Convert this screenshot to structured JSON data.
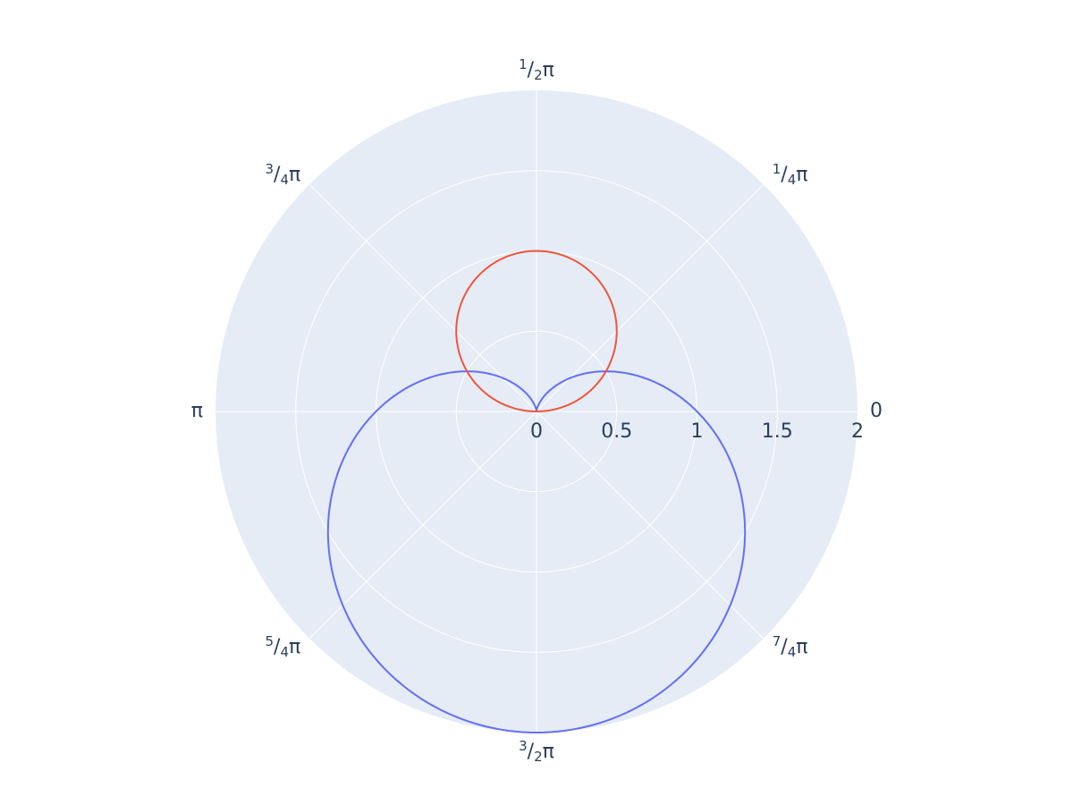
{
  "chart_data": {
    "type": "polar-line",
    "title": "",
    "background_color": "#e5ecf6",
    "grid_color": "#ffffff",
    "radial_axis": {
      "range": [
        0,
        2
      ],
      "tick_values": [
        0,
        0.5,
        1,
        1.5,
        2
      ],
      "tick_labels": [
        "0",
        "0.5",
        "1",
        "1.5",
        "2"
      ]
    },
    "angular_axis": {
      "unit": "radians",
      "direction": "counterclockwise",
      "rotation_degrees": 0,
      "ticks": [
        {
          "angle_degrees": 0,
          "num": "",
          "den": "",
          "symbol": "0"
        },
        {
          "angle_degrees": 45,
          "num": "1",
          "den": "4",
          "symbol": "π"
        },
        {
          "angle_degrees": 90,
          "num": "1",
          "den": "2",
          "symbol": "π"
        },
        {
          "angle_degrees": 135,
          "num": "3",
          "den": "4",
          "symbol": "π"
        },
        {
          "angle_degrees": 180,
          "num": "",
          "den": "",
          "symbol": "π"
        },
        {
          "angle_degrees": 225,
          "num": "5",
          "den": "4",
          "symbol": "π"
        },
        {
          "angle_degrees": 270,
          "num": "3",
          "den": "2",
          "symbol": "π"
        },
        {
          "angle_degrees": 315,
          "num": "7",
          "den": "4",
          "symbol": "π"
        }
      ]
    },
    "series": [
      {
        "equation": "r = 1 - sin(theta)",
        "color": "#636efa",
        "theta_degrees": [
          0,
          15,
          30,
          45,
          60,
          75,
          90,
          105,
          120,
          135,
          150,
          165,
          180,
          195,
          210,
          225,
          240,
          255,
          270,
          285,
          300,
          315,
          330,
          345,
          360
        ],
        "r": [
          1,
          0.741,
          0.5,
          0.293,
          0.134,
          0.034,
          0,
          0.034,
          0.134,
          0.293,
          0.5,
          0.741,
          1,
          1.259,
          1.5,
          1.707,
          1.866,
          1.966,
          2,
          1.966,
          1.866,
          1.707,
          1.5,
          1.259,
          1
        ]
      },
      {
        "equation": "r = sin(theta)",
        "color": "#ef553b",
        "theta_degrees": [
          0,
          15,
          30,
          45,
          60,
          75,
          90,
          105,
          120,
          135,
          150,
          165,
          180
        ],
        "r": [
          0,
          0.259,
          0.5,
          0.707,
          0.866,
          0.966,
          1,
          0.966,
          0.866,
          0.707,
          0.5,
          0.259,
          0
        ]
      }
    ]
  }
}
